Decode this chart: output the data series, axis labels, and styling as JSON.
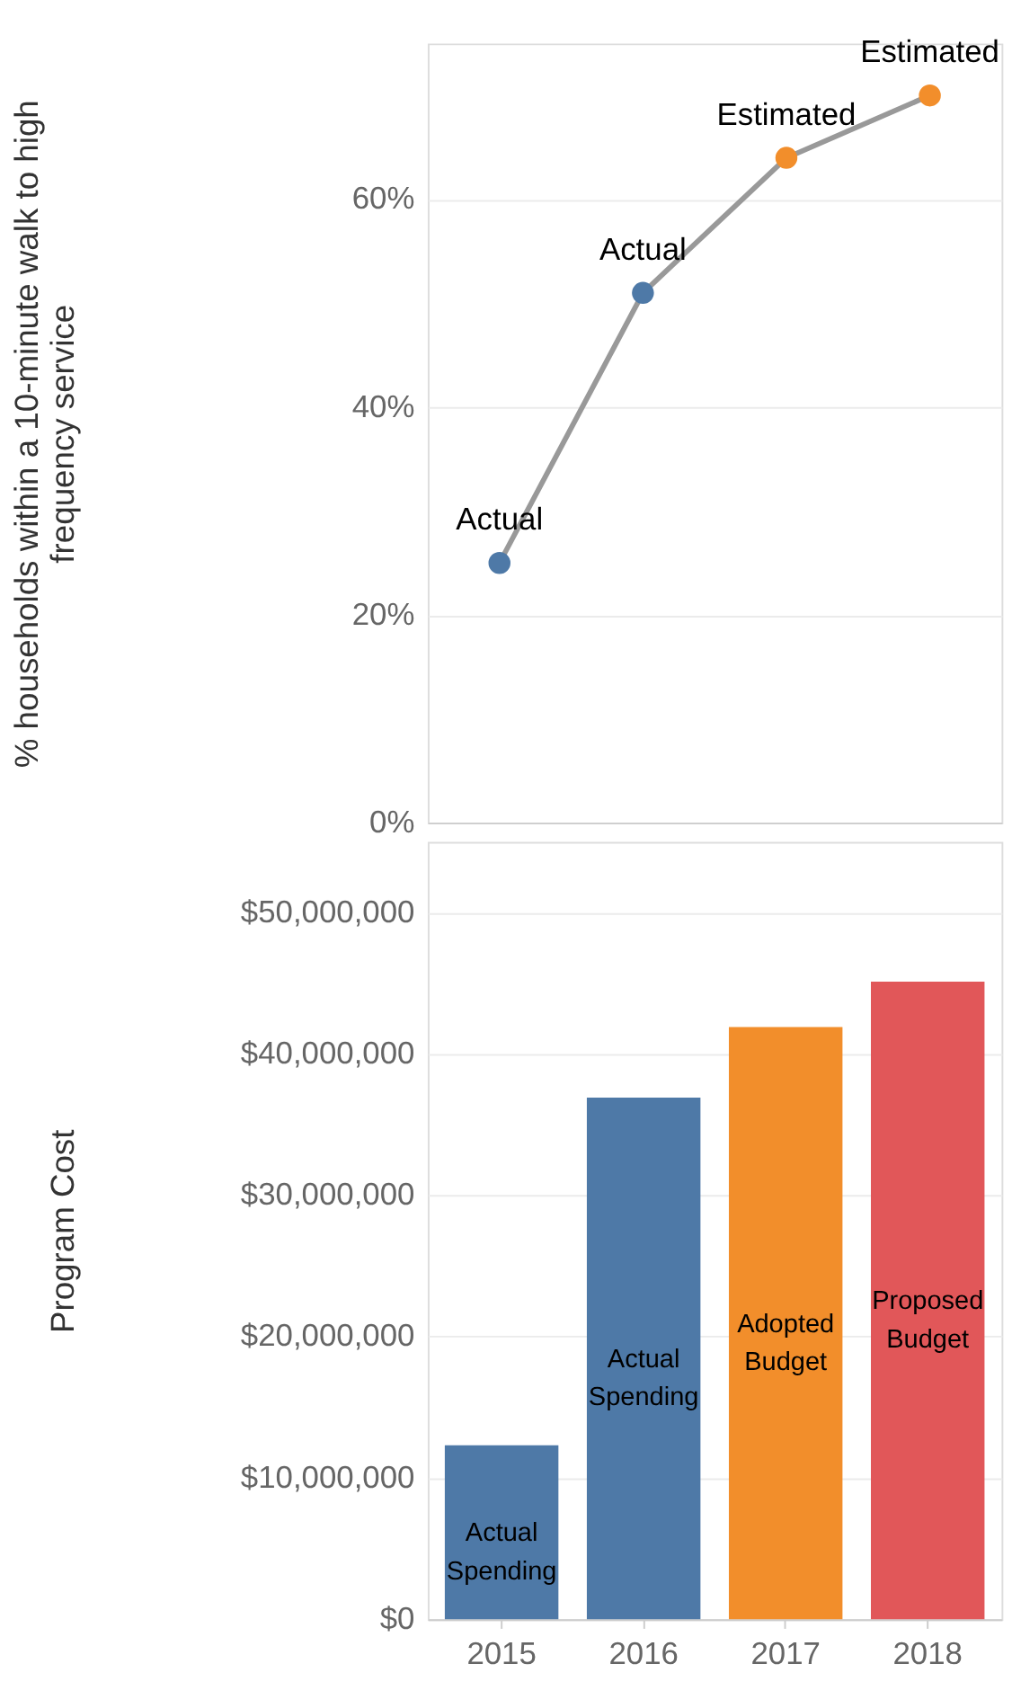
{
  "chart_data": [
    {
      "type": "line",
      "ylabel": "% households within a 10-minute walk to high frequency service",
      "categories": [
        "2015",
        "2016",
        "2017",
        "2018"
      ],
      "series": [
        {
          "color": "#999999",
          "colors": [
            "#4e79a7",
            "#4e79a7",
            "#f28e2b",
            "#f28e2b"
          ],
          "values": [
            25,
            51,
            64,
            70
          ],
          "value_labels": [
            "Actual",
            "Actual",
            "Estimated",
            "Estimated"
          ]
        }
      ],
      "ylim": [
        0,
        75
      ],
      "yticks": [
        {
          "value": 0,
          "label": "0%"
        },
        {
          "value": 20,
          "label": "20%"
        },
        {
          "value": 40,
          "label": "40%"
        },
        {
          "value": 60,
          "label": "60%"
        }
      ],
      "grid": "y",
      "marker": "circle",
      "tick_labels": "y"
    },
    {
      "type": "bar",
      "ylabel": "Program Cost",
      "categories": [
        "2015",
        "2016",
        "2017",
        "2018"
      ],
      "values": [
        12300000,
        36900000,
        41900000,
        45100000
      ],
      "colors": [
        "#4e79a7",
        "#4e79a7",
        "#f28e2b",
        "#e15759"
      ],
      "value_labels": [
        "Actual Spending",
        "Actual Spending",
        "Adopted Budget",
        "Proposed Budget"
      ],
      "ylim": [
        0,
        55000000
      ],
      "yticks": [
        {
          "value": 0,
          "label": "$0"
        },
        {
          "value": 10000000,
          "label": "$10,000,000"
        },
        {
          "value": 20000000,
          "label": "$20,000,000"
        },
        {
          "value": 30000000,
          "label": "$30,000,000"
        },
        {
          "value": 40000000,
          "label": "$40,000,000"
        },
        {
          "value": 50000000,
          "label": "$50,000,000"
        }
      ],
      "grid": "y"
    }
  ]
}
